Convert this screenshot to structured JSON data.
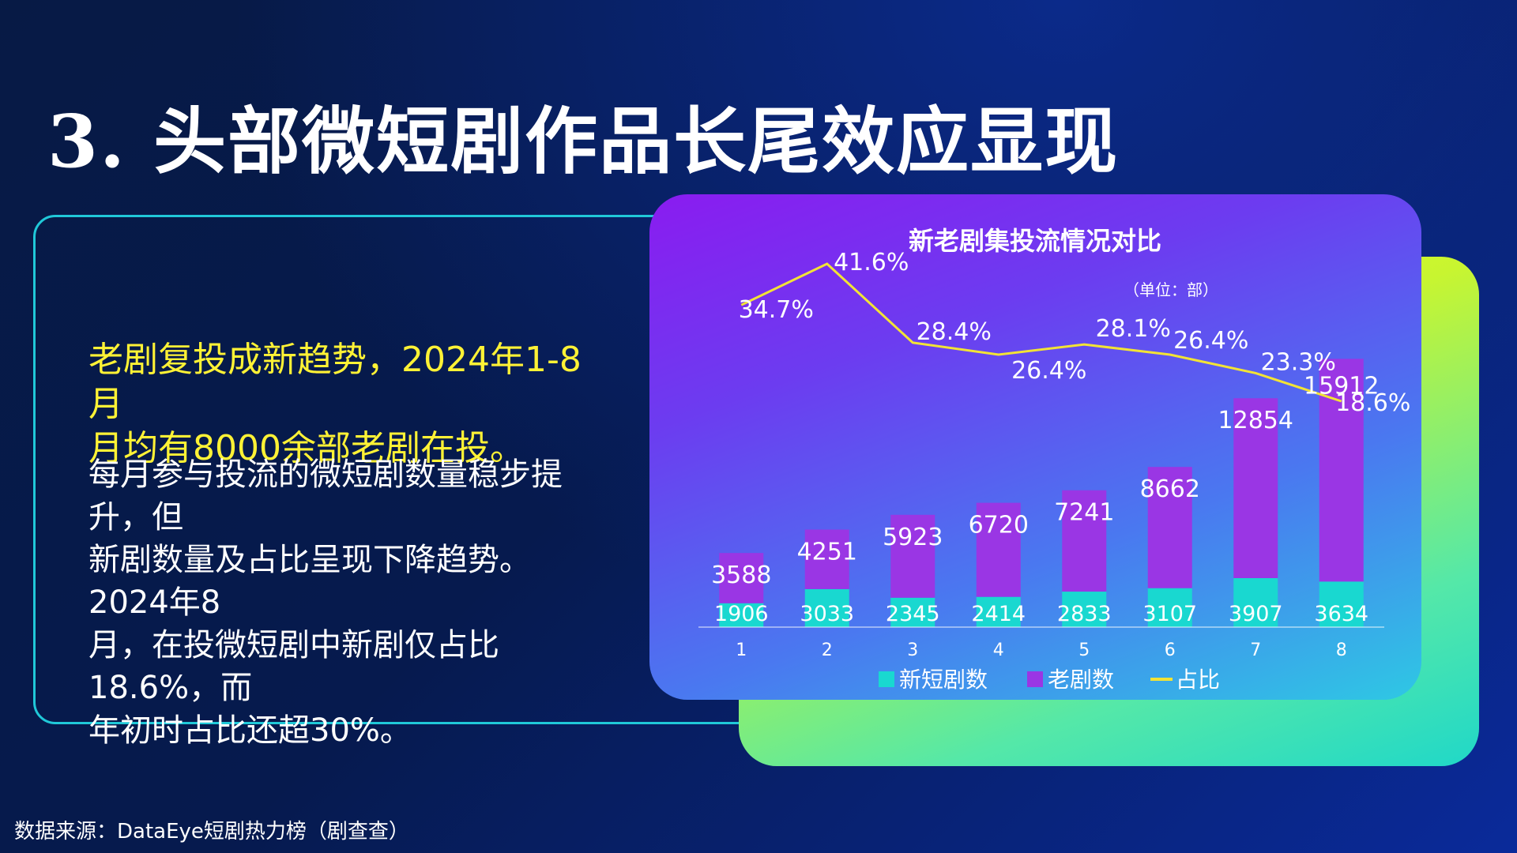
{
  "slide": {
    "title": "3. 头部微短剧作品长尾效应显现",
    "highlight_lines": [
      "老剧复投成新趋势，2024年1-8月",
      "月均有8000余部老剧在投。"
    ],
    "body_lines": [
      "每月参与投流的微短剧数量稳步提升，但",
      "新剧数量及占比呈现下降趋势。2024年8",
      "月，在投微短剧中新剧仅占比18.6%，而",
      "年初时占比还超30%。"
    ],
    "source": "数据来源：DataEye短剧热力榜（剧查查）"
  },
  "colors": {
    "new_series": "#19d8d0",
    "old_series": "#9a36e4",
    "ratio_line": "#f2e335",
    "highlight_text": "#fff235",
    "panel_border": "#20c8d8"
  },
  "chart_data": {
    "type": "bar",
    "title": "新老剧集投流情况对比",
    "unit": "（单位：部）",
    "stacked": true,
    "categories": [
      "1",
      "2",
      "3",
      "4",
      "5",
      "6",
      "7",
      "8"
    ],
    "series": [
      {
        "name": "新短剧数",
        "kind": "bar",
        "values": [
          1906,
          3033,
          2345,
          2414,
          2833,
          3107,
          3907,
          3634
        ]
      },
      {
        "name": "老剧数",
        "kind": "bar",
        "values": [
          3588,
          4251,
          5923,
          6720,
          7241,
          8662,
          12854,
          15912
        ]
      },
      {
        "name": "占比",
        "kind": "line",
        "values": [
          34.7,
          41.6,
          28.4,
          26.4,
          28.1,
          26.4,
          23.3,
          18.6
        ],
        "labels": [
          "34.7%",
          "41.6%",
          "28.4%",
          "26.4%",
          "28.1%",
          "26.4%",
          "23.3%",
          "18.6%"
        ]
      }
    ],
    "legend_position": "bottom",
    "grid": false
  }
}
